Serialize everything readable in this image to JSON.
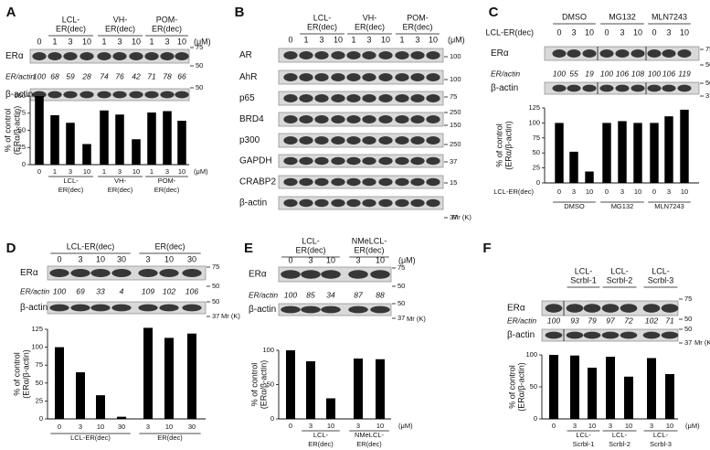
{
  "figure_labels": [
    "A",
    "B",
    "C",
    "D",
    "E",
    "F"
  ],
  "blots": [
    {
      "headers": [
        [
          "LCL-",
          "ER(dec)"
        ],
        [
          "VH-",
          "ER(dec)"
        ],
        [
          "POM-",
          "ER(dec)"
        ]
      ],
      "doses": [
        "0",
        "1",
        "3",
        "10",
        "1",
        "3",
        "10",
        "1",
        "3",
        "10"
      ],
      "unit": "(μM)",
      "rows": [
        {
          "name": "ERα",
          "markers": [
            75,
            50
          ]
        },
        {
          "name": "β-actin",
          "markers": [
            50
          ]
        }
      ],
      "ratio_label": "ER/actin",
      "ratios": [
        100,
        68,
        59,
        28,
        74,
        76,
        42,
        71,
        78,
        66
      ]
    },
    {
      "headers": [
        [
          "LCL-",
          "ER(dec)"
        ],
        [
          "VH-",
          "ER(dec)"
        ],
        [
          "POM-",
          "ER(dec)"
        ]
      ],
      "doses": [
        "0",
        "1",
        "3",
        "10",
        "1",
        "3",
        "10",
        "1",
        "3",
        "10"
      ],
      "unit": "(μM)",
      "rows": [
        {
          "name": "AR",
          "markers": [
            100
          ]
        },
        {
          "name": "AhR",
          "markers": [
            100
          ]
        },
        {
          "name": "p65",
          "markers": [
            75
          ]
        },
        {
          "name": "BRD4",
          "markers": [
            250,
            150
          ]
        },
        {
          "name": "p300",
          "markers": [
            250
          ]
        },
        {
          "name": "GAPDH",
          "markers": [
            37
          ]
        },
        {
          "name": "CRABP2",
          "markers": [
            15
          ]
        },
        {
          "name": "β-actin",
          "markers": [
            37
          ]
        }
      ],
      "mr": "Mr (K)"
    },
    {
      "headers": [
        [
          "DMSO"
        ],
        [
          "MG132"
        ],
        [
          "MLN7243"
        ]
      ],
      "dose_label": "LCL-ER(dec)",
      "doses": [
        "0",
        "3",
        "10",
        "0",
        "3",
        "10",
        "0",
        "3",
        "10"
      ],
      "rows": [
        {
          "name": "ERα",
          "markers": [
            75,
            50
          ]
        },
        {
          "name": "β-actin",
          "markers": [
            50,
            37
          ]
        }
      ],
      "ratio_label": "ER/actin",
      "ratios": [
        100,
        55,
        19,
        100,
        106,
        108,
        100,
        106,
        119
      ]
    },
    {
      "headers": [
        [
          "LCL-ER(dec)"
        ],
        [
          "ER(dec)"
        ]
      ],
      "doses": [
        "0",
        "3",
        "10",
        "30",
        "3",
        "10",
        "30"
      ],
      "rows": [
        {
          "name": "ERα",
          "markers": [
            75,
            50
          ]
        },
        {
          "name": "β-actin",
          "markers": [
            50,
            37
          ]
        }
      ],
      "ratio_label": "ER/actin",
      "ratios": [
        100,
        69,
        33,
        4,
        109,
        102,
        106
      ],
      "mr": "Mr (K)"
    },
    {
      "headers": [
        [
          "LCL-",
          "ER(dec)"
        ],
        [
          "NMeLCL-",
          "ER(dec)"
        ]
      ],
      "doses": [
        "0",
        "3",
        "10",
        "3",
        "10"
      ],
      "unit": "(μM)",
      "rows": [
        {
          "name": "ERα",
          "markers": [
            75,
            50
          ]
        },
        {
          "name": "β-actin",
          "markers": [
            50,
            37
          ]
        }
      ],
      "ratio_label": "ER/actin",
      "ratios": [
        100,
        85,
        34,
        87,
        88
      ],
      "mr": "Mr (K)"
    },
    {
      "headers": [
        [
          "LCL-",
          "Scrbl-1"
        ],
        [
          "LCL-",
          "Scrbl-2"
        ],
        [
          "LCL-",
          "Scrbl-3"
        ]
      ],
      "rows": [
        {
          "name": "ERα",
          "markers": [
            75,
            50
          ]
        },
        {
          "name": "β-actin",
          "markers": [
            50,
            37
          ]
        }
      ],
      "ratio_label": "ER/actin",
      "ratios": [
        100,
        93,
        79,
        97,
        72,
        102,
        71
      ],
      "mr": "Mr (K)"
    }
  ],
  "chart_data": [
    {
      "type": "bar",
      "ylabel": [
        "% of control",
        "(ERα/β-actin)"
      ],
      "categories": [
        "0",
        "1",
        "3",
        "10",
        "1",
        "3",
        "10",
        "1",
        "3",
        "10"
      ],
      "unit": "(μM)",
      "groups": [
        [
          "LCL-",
          "ER(dec)"
        ],
        [
          "VH-",
          "ER(dec)"
        ],
        [
          "POM-",
          "ER(dec)"
        ]
      ],
      "values": [
        100,
        72,
        61,
        30,
        79,
        73,
        37,
        76,
        78,
        64
      ],
      "color": "#000000",
      "ylim": [
        0,
        100
      ],
      "yticks": [
        0,
        25,
        50,
        75,
        100
      ]
    },
    {
      "type": "bar",
      "ylabel": [
        "% of control",
        "(ERα/β-actin)"
      ],
      "categories": [
        "0",
        "3",
        "10",
        "0",
        "3",
        "10",
        "0",
        "3",
        "10"
      ],
      "x_label": "LCL-ER(dec)",
      "groups": [
        [
          "DMSO"
        ],
        [
          "MG132"
        ],
        [
          "MLN7243"
        ]
      ],
      "values": [
        100,
        52,
        19,
        100,
        103,
        100,
        100,
        111,
        122
      ],
      "color": "#000000",
      "ylim": [
        0,
        125
      ],
      "yticks": [
        0,
        25,
        50,
        75,
        100,
        125
      ]
    },
    {
      "type": "bar",
      "ylabel": [
        "% of control",
        "(ERα/β-actin)"
      ],
      "categories": [
        "0",
        "3",
        "10",
        "30",
        "3",
        "10",
        "30"
      ],
      "groups": [
        [
          "LCL-ER(dec)"
        ],
        [
          "ER(dec)"
        ]
      ],
      "values": [
        100,
        65,
        33,
        3,
        127,
        113,
        119
      ],
      "color": "#000000",
      "ylim": [
        0,
        125
      ],
      "yticks": [
        0,
        25,
        50,
        75,
        100,
        125
      ]
    },
    {
      "type": "bar",
      "ylabel": [
        "% of control",
        "(ERα/β-actin)"
      ],
      "categories": [
        "0",
        "3",
        "10",
        "3",
        "10"
      ],
      "unit": "(μM)",
      "groups": [
        [
          "LCL-",
          "ER(dec)"
        ],
        [
          "NMeLCL-",
          "ER(dec)"
        ]
      ],
      "values": [
        100,
        84,
        30,
        88,
        87
      ],
      "color": "#000000",
      "ylim": [
        0,
        100
      ],
      "yticks": [
        0,
        50,
        100
      ]
    },
    {
      "type": "bar",
      "ylabel": [
        "% of control",
        "(ERα/β-actin)"
      ],
      "categories": [
        "0",
        "3",
        "10",
        "3",
        "10",
        "3",
        "10"
      ],
      "unit": "(μM)",
      "groups": [
        [
          "LCL-",
          "Scrbl-1"
        ],
        [
          "LCL-",
          "Scrbl-2"
        ],
        [
          "LCL-",
          "Scrbl-3"
        ]
      ],
      "values": [
        100,
        99,
        80,
        97,
        66,
        95,
        70
      ],
      "color": "#000000",
      "ylim": [
        0,
        100
      ],
      "yticks": [
        0,
        50,
        100
      ]
    }
  ]
}
